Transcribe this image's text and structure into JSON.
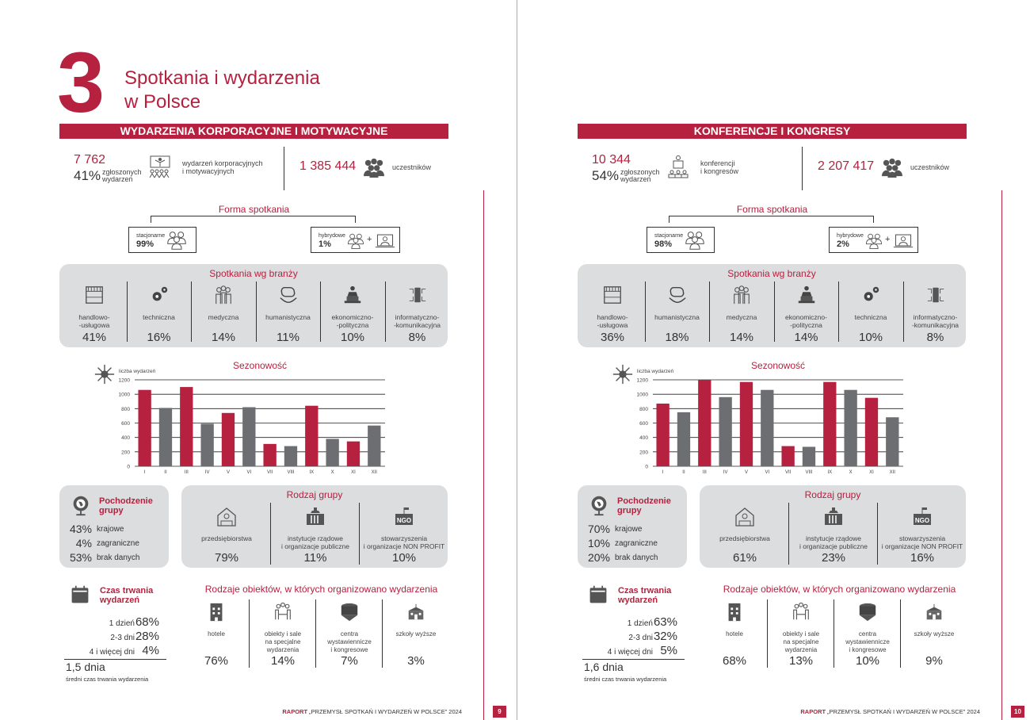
{
  "chapter": {
    "number": "3",
    "title_line1": "Spotkania i wydarzenia",
    "title_line2": "w Polsce"
  },
  "footer": {
    "brand": "RAPORT",
    "text": "„PRZEMYSŁ SPOTKAŃ I WYDARZEŃ W POLSCE” 2024"
  },
  "colors": {
    "accent": "#b5213f",
    "grey_bar": "#6d6e71",
    "panel": "#dcdddf"
  },
  "pages": [
    {
      "page_number": "9",
      "section_title": "WYDARZENIA KORPORACYJNE I MOTYWACYJNE",
      "stats": {
        "count": "7 762",
        "percent": "41%",
        "percent_label_1": "zgłoszonych",
        "percent_label_2": "wydarzeń",
        "description_1": "wydarzeń korporacyjnych",
        "description_2": "i motywacyjnych",
        "icon": "presentation-audience-icon",
        "participants": "1 385 444",
        "participants_label": "uczestników"
      },
      "forma": {
        "title": "Forma spotkania",
        "stationary": {
          "label": "stacjonarne",
          "value": "99%"
        },
        "hybrid": {
          "label": "hybrydowe",
          "value": "1%"
        },
        "plus": "+"
      },
      "branze": {
        "title": "Spotkania wg branży",
        "items": [
          {
            "label": "handlowo-\n-usługowa",
            "value": "41%",
            "icon": "shop-icon"
          },
          {
            "label": "techniczna",
            "value": "16%",
            "icon": "gears-icon"
          },
          {
            "label": "medyczna",
            "value": "14%",
            "icon": "medical-staff-icon"
          },
          {
            "label": "humanistyczna",
            "value": "11%",
            "icon": "brain-hands-icon"
          },
          {
            "label": "ekonomiczno-\n-polityczna",
            "value": "10%",
            "icon": "speaker-podium-icon"
          },
          {
            "label": "informatyczno-\n-komunikacyjna",
            "value": "8%",
            "icon": "circuit-phone-icon"
          }
        ]
      },
      "origin": {
        "title": "Pochodzenie\ngrupy",
        "items": [
          {
            "value": "43%",
            "label": "krajowe"
          },
          {
            "value": "4%",
            "label": "zagraniczne"
          },
          {
            "value": "53%",
            "label": "brak danych"
          }
        ]
      },
      "group_type": {
        "title": "Rodzaj grupy",
        "items": [
          {
            "label": "przedsiębiorstwa",
            "value": "79%",
            "icon": "company-building-icon"
          },
          {
            "label": "instytucje rządowe\ni organizacje publiczne",
            "value": "11%",
            "icon": "government-building-icon"
          },
          {
            "label": "stowarzyszenia\ni organizacje NON PROFIT",
            "value": "10%",
            "icon": "ngo-icon"
          }
        ]
      },
      "duration": {
        "title": "Czas trwania\nwydarzeń",
        "items": [
          {
            "label": "1 dzień",
            "value": "68%"
          },
          {
            "label": "2-3 dni",
            "value": "28%"
          },
          {
            "label": "4 i więcej dni",
            "value": "4%"
          }
        ],
        "average": "1,5 dnia",
        "average_label": "średni czas trwania wydarzenia"
      },
      "venues": {
        "title": "Rodzaje obiektów, w których organizowano wydarzenia",
        "items": [
          {
            "label": "hotele",
            "value": "76%",
            "icon": "hotel-icon"
          },
          {
            "label": "obiekty i sale\nna specjalne\nwydarzenia",
            "value": "14%",
            "icon": "meeting-table-icon"
          },
          {
            "label": "centra\nwystawiennicze\ni kongresowe",
            "value": "7%",
            "icon": "congress-center-icon"
          },
          {
            "label": "szkoły wyższe",
            "value": "3%",
            "icon": "university-icon"
          }
        ]
      }
    },
    {
      "page_number": "10",
      "section_title": "KONFERENCJE I KONGRESY",
      "stats": {
        "count": "10 344",
        "percent": "54%",
        "percent_label_1": "zgłoszonych",
        "percent_label_2": "wydarzeń",
        "description_1": "konferencji",
        "description_2": "i kongresów",
        "icon": "lecturer-audience-icon",
        "participants": "2 207 417",
        "participants_label": "uczestników"
      },
      "forma": {
        "title": "Forma spotkania",
        "stationary": {
          "label": "stacjonarne",
          "value": "98%"
        },
        "hybrid": {
          "label": "hybrydowe",
          "value": "2%"
        },
        "plus": "+"
      },
      "branze": {
        "title": "Spotkania wg branży",
        "items": [
          {
            "label": "handlowo-\n-usługowa",
            "value": "36%",
            "icon": "shop-icon"
          },
          {
            "label": "humanistyczna",
            "value": "18%",
            "icon": "brain-hands-icon"
          },
          {
            "label": "medyczna",
            "value": "14%",
            "icon": "medical-staff-icon"
          },
          {
            "label": "ekonomiczno-\n-polityczna",
            "value": "14%",
            "icon": "speaker-podium-icon"
          },
          {
            "label": "techniczna",
            "value": "10%",
            "icon": "gears-icon"
          },
          {
            "label": "informatyczno-\n-komunikacyjna",
            "value": "8%",
            "icon": "circuit-phone-icon"
          }
        ]
      },
      "origin": {
        "title": "Pochodzenie\ngrupy",
        "items": [
          {
            "value": "70%",
            "label": "krajowe"
          },
          {
            "value": "10%",
            "label": "zagraniczne"
          },
          {
            "value": "20%",
            "label": "brak danych"
          }
        ]
      },
      "group_type": {
        "title": "Rodzaj grupy",
        "items": [
          {
            "label": "przedsiębiorstwa",
            "value": "61%",
            "icon": "company-building-icon"
          },
          {
            "label": "instytucje rządowe\ni organizacje publiczne",
            "value": "23%",
            "icon": "government-building-icon"
          },
          {
            "label": "stowarzyszenia\ni organizacje NON PROFIT",
            "value": "16%",
            "icon": "ngo-icon"
          }
        ]
      },
      "duration": {
        "title": "Czas trwania\nwydarzeń",
        "items": [
          {
            "label": "1 dzień",
            "value": "63%"
          },
          {
            "label": "2-3 dni",
            "value": "32%"
          },
          {
            "label": "4 i więcej dni",
            "value": "5%"
          }
        ],
        "average": "1,6 dnia",
        "average_label": "średni czas trwania wydarzenia"
      },
      "venues": {
        "title": "Rodzaje obiektów, w których organizowano wydarzenia",
        "items": [
          {
            "label": "hotele",
            "value": "68%",
            "icon": "hotel-icon"
          },
          {
            "label": "obiekty i sale\nna specjalne\nwydarzenia",
            "value": "13%",
            "icon": "meeting-table-icon"
          },
          {
            "label": "centra\nwystawiennicze\ni kongresowe",
            "value": "10%",
            "icon": "congress-center-icon"
          },
          {
            "label": "szkoły wyższe",
            "value": "9%",
            "icon": "university-icon"
          }
        ]
      }
    }
  ],
  "chart_data": [
    {
      "type": "bar",
      "title": "Sezonowość",
      "ylabel": "liczba wydarzeń",
      "xlabel": "",
      "categories": [
        "I",
        "II",
        "III",
        "IV",
        "V",
        "VI",
        "VII",
        "VIII",
        "IX",
        "X",
        "XI",
        "XII"
      ],
      "values": [
        1060,
        810,
        1100,
        590,
        740,
        820,
        310,
        280,
        840,
        380,
        345,
        565
      ],
      "ylim": [
        0,
        1200
      ],
      "yticks": [
        0,
        200,
        400,
        600,
        800,
        1000,
        1200
      ],
      "grid": true,
      "bar_colors": [
        "#b5213f",
        "#6d6e71"
      ]
    },
    {
      "type": "bar",
      "title": "Sezonowość",
      "ylabel": "liczba wydarzeń",
      "xlabel": "",
      "categories": [
        "I",
        "II",
        "III",
        "IV",
        "V",
        "VI",
        "VII",
        "VIII",
        "IX",
        "X",
        "XI",
        "XII"
      ],
      "values": [
        870,
        750,
        1200,
        960,
        1170,
        1060,
        280,
        270,
        1170,
        1060,
        950,
        680
      ],
      "ylim": [
        0,
        1200
      ],
      "yticks": [
        0,
        200,
        400,
        600,
        800,
        1000,
        1200
      ],
      "grid": true,
      "bar_colors": [
        "#b5213f",
        "#6d6e71"
      ]
    }
  ]
}
